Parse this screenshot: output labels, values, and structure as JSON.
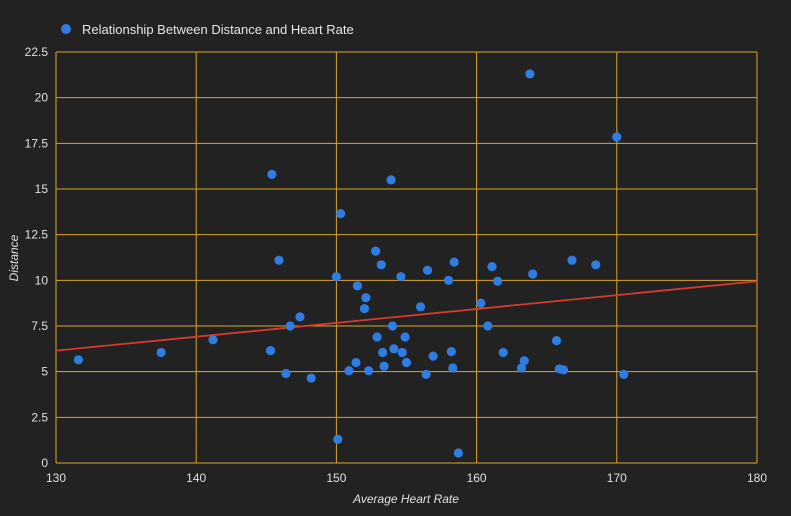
{
  "colors": {
    "background": "#222222",
    "grid": "#d9a52b",
    "point": "#2f7de1",
    "trendline": "#d93a30",
    "text": "#e0e0e0"
  },
  "chart_data": {
    "type": "scatter",
    "title": "",
    "xlabel": "Average Heart Rate",
    "ylabel": "Distance",
    "xlim": [
      130,
      180
    ],
    "ylim": [
      0,
      22.5
    ],
    "x_ticks": [
      "130",
      "140",
      "150",
      "160",
      "170",
      "180"
    ],
    "y_ticks": [
      "0",
      "2.5",
      "5",
      "7.5",
      "10",
      "12.5",
      "15",
      "17.5",
      "20",
      "22.5"
    ],
    "grid": true,
    "legend_position": "top-left",
    "trendline": {
      "type": "linear",
      "x": [
        130,
        180
      ],
      "y": [
        6.15,
        9.95
      ]
    },
    "series": [
      {
        "name": "Relationship Between Distance and Heart Rate",
        "points": [
          [
            131.6,
            5.65
          ],
          [
            137.5,
            6.05
          ],
          [
            141.2,
            6.75
          ],
          [
            145.3,
            6.15
          ],
          [
            145.4,
            15.8
          ],
          [
            145.9,
            11.1
          ],
          [
            146.4,
            4.9
          ],
          [
            146.7,
            7.5
          ],
          [
            147.4,
            8.0
          ],
          [
            148.2,
            4.65
          ],
          [
            150.0,
            10.2
          ],
          [
            150.1,
            1.3
          ],
          [
            150.3,
            13.65
          ],
          [
            150.9,
            5.05
          ],
          [
            151.4,
            5.5
          ],
          [
            151.5,
            9.7
          ],
          [
            152.0,
            8.45
          ],
          [
            152.1,
            9.05
          ],
          [
            152.3,
            5.05
          ],
          [
            152.8,
            11.6
          ],
          [
            152.9,
            6.9
          ],
          [
            153.2,
            10.85
          ],
          [
            153.3,
            6.05
          ],
          [
            153.4,
            5.3
          ],
          [
            153.9,
            15.5
          ],
          [
            154.0,
            7.5
          ],
          [
            154.1,
            6.25
          ],
          [
            154.6,
            10.2
          ],
          [
            154.7,
            6.05
          ],
          [
            154.9,
            6.9
          ],
          [
            155.0,
            5.5
          ],
          [
            156.0,
            8.55
          ],
          [
            156.4,
            4.85
          ],
          [
            156.5,
            10.55
          ],
          [
            156.9,
            5.85
          ],
          [
            158.0,
            10.0
          ],
          [
            158.2,
            6.1
          ],
          [
            158.3,
            5.2
          ],
          [
            158.4,
            11.0
          ],
          [
            158.7,
            0.55
          ],
          [
            160.3,
            8.75
          ],
          [
            160.8,
            7.5
          ],
          [
            161.1,
            10.75
          ],
          [
            161.5,
            9.95
          ],
          [
            161.9,
            6.05
          ],
          [
            163.2,
            5.2
          ],
          [
            163.4,
            5.6
          ],
          [
            163.8,
            21.3
          ],
          [
            164.0,
            10.35
          ],
          [
            165.7,
            6.7
          ],
          [
            165.9,
            5.15
          ],
          [
            166.2,
            5.1
          ],
          [
            166.8,
            11.1
          ],
          [
            168.5,
            10.85
          ],
          [
            170.0,
            17.85
          ],
          [
            170.5,
            4.85
          ]
        ]
      }
    ]
  }
}
